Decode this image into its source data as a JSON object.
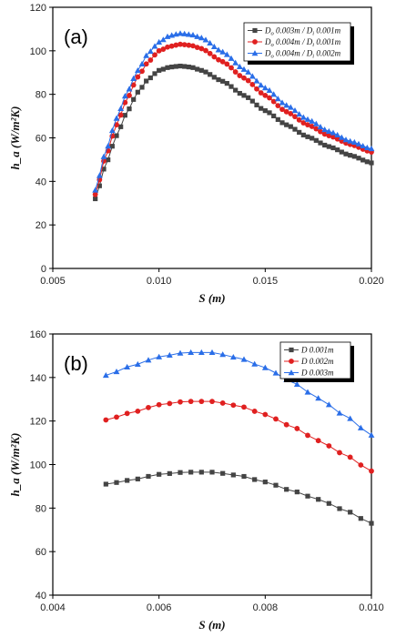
{
  "chart_data": [
    {
      "panel": "(a)",
      "type": "line",
      "xlabel": "S (m)",
      "ylabel": "h_a (W/m²K)",
      "xlim": [
        0.005,
        0.02
      ],
      "ylim": [
        0,
        120
      ],
      "xticks": [
        0.005,
        0.01,
        0.015,
        0.02
      ],
      "xtick_labels": [
        "0.005",
        "0.010",
        "0.015",
        "0.020"
      ],
      "yticks": [
        0,
        20,
        40,
        60,
        80,
        100,
        120
      ],
      "ytick_labels": [
        "0",
        "20",
        "40",
        "60",
        "80",
        "100",
        "120"
      ],
      "legend_position": "top-right",
      "x_start": 0.007,
      "x_end": 0.02,
      "x_step": 0.0002,
      "series": [
        {
          "name": "Do 0.003m / Di 0.001m",
          "name_parts": [
            "D",
            "o",
            " 0.003m / D",
            "i",
            " 0.001m"
          ],
          "color": "#444444",
          "marker": "square",
          "x": [
            0.007,
            0.0075,
            0.008,
            0.0085,
            0.009,
            0.0095,
            0.01,
            0.0105,
            0.011,
            0.0115,
            0.012,
            0.013,
            0.014,
            0.015,
            0.016,
            0.017,
            0.018,
            0.019,
            0.02
          ],
          "y": [
            32,
            48,
            61,
            72,
            81,
            87,
            91,
            92.5,
            93,
            92.5,
            91,
            86,
            79.5,
            72.5,
            66,
            60.5,
            56,
            52,
            48.5
          ]
        },
        {
          "name": "Do 0.004m / Di 0.001m",
          "name_parts": [
            "D",
            "o",
            " 0.004m / D",
            "i",
            " 0.001m"
          ],
          "color": "#e02020",
          "marker": "circle",
          "x": [
            0.007,
            0.0075,
            0.008,
            0.0085,
            0.009,
            0.0095,
            0.01,
            0.0105,
            0.011,
            0.0115,
            0.012,
            0.013,
            0.014,
            0.015,
            0.016,
            0.017,
            0.018,
            0.019,
            0.02
          ],
          "y": [
            34,
            52,
            66,
            78,
            88,
            95,
            100,
            102,
            103,
            102.5,
            101,
            95,
            87.5,
            79.5,
            72,
            66,
            61,
            57,
            53.5
          ]
        },
        {
          "name": "Do 0.004m / Di 0.002m",
          "name_parts": [
            "D",
            "o",
            " 0.004m / D",
            "i",
            " 0.002m"
          ],
          "color": "#2a6ee8",
          "marker": "triangle",
          "x": [
            0.007,
            0.0075,
            0.008,
            0.0085,
            0.009,
            0.0095,
            0.01,
            0.0105,
            0.011,
            0.0115,
            0.012,
            0.013,
            0.014,
            0.015,
            0.016,
            0.017,
            0.018,
            0.019,
            0.02
          ],
          "y": [
            36,
            54,
            69,
            81,
            91,
            99,
            104,
            107,
            108,
            107.5,
            106,
            99.5,
            91.5,
            83,
            75,
            68.5,
            63,
            58.5,
            55
          ]
        }
      ]
    },
    {
      "panel": "(b)",
      "type": "line",
      "xlabel": "S (m)",
      "ylabel": "h_a (W/m²K)",
      "xlim": [
        0.004,
        0.01
      ],
      "ylim": [
        40,
        160
      ],
      "xticks": [
        0.004,
        0.006,
        0.008,
        0.01
      ],
      "xtick_labels": [
        "0.004",
        "0.006",
        "0.008",
        "0.010"
      ],
      "yticks": [
        40,
        60,
        80,
        100,
        120,
        140,
        160
      ],
      "ytick_labels": [
        "40",
        "60",
        "80",
        "100",
        "120",
        "140",
        "160"
      ],
      "legend_position": "top-right",
      "x_start": 0.005,
      "x_end": 0.01,
      "x_step": 0.0002,
      "series": [
        {
          "name": "D 0.001m",
          "name_parts": [
            "D 0.001m"
          ],
          "color": "#444444",
          "marker": "square",
          "x": [
            0.005,
            0.0055,
            0.006,
            0.0065,
            0.007,
            0.0075,
            0.008,
            0.0085,
            0.009,
            0.0095,
            0.01
          ],
          "y": [
            91,
            93,
            95.5,
            96.5,
            96.5,
            95,
            92,
            88,
            84,
            79,
            73
          ]
        },
        {
          "name": "D 0.002m",
          "name_parts": [
            "D 0.002m"
          ],
          "color": "#e02020",
          "marker": "circle",
          "x": [
            0.005,
            0.0055,
            0.006,
            0.0065,
            0.007,
            0.0075,
            0.008,
            0.0085,
            0.009,
            0.0095,
            0.01
          ],
          "y": [
            120.5,
            124,
            127.5,
            129,
            129,
            127,
            123,
            117.5,
            111,
            104.5,
            97
          ]
        },
        {
          "name": "D 0.003m",
          "name_parts": [
            "D 0.003m"
          ],
          "color": "#2a6ee8",
          "marker": "triangle",
          "x": [
            0.005,
            0.0055,
            0.006,
            0.0065,
            0.007,
            0.0075,
            0.008,
            0.0085,
            0.009,
            0.0095,
            0.01
          ],
          "y": [
            141,
            145.5,
            149.5,
            151.5,
            151.5,
            149,
            144.5,
            138,
            130.5,
            122.5,
            113.5
          ]
        }
      ]
    }
  ]
}
